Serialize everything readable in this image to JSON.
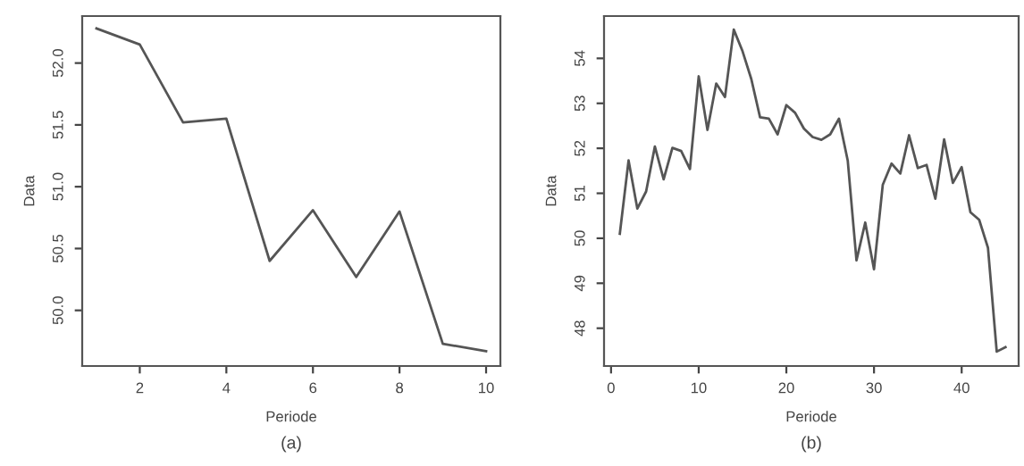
{
  "chart_data": [
    {
      "type": "line",
      "xlabel": "Periode",
      "ylabel": "Data",
      "annotations": [
        "(a)"
      ],
      "x": [
        1,
        2,
        3,
        4,
        5,
        6,
        7,
        8,
        9,
        10
      ],
      "series": [
        {
          "color": "#555555",
          "values": [
            52.28,
            52.15,
            51.52,
            51.55,
            50.4,
            50.81,
            50.27,
            50.8,
            49.73,
            49.67
          ]
        }
      ],
      "xlim": [
        0.67,
        10.33
      ],
      "ylim": [
        49.55,
        52.38
      ],
      "xticks": [
        2,
        4,
        6,
        8,
        10
      ],
      "yticks": [
        {
          "value": 50,
          "label": "50.0"
        },
        {
          "value": 50.5,
          "label": "50.5"
        },
        {
          "value": 51,
          "label": "51.0"
        },
        {
          "value": 51.5,
          "label": "51.5"
        },
        {
          "value": 52,
          "label": "52.0"
        }
      ],
      "grid": false,
      "legend": false,
      "marker": "none",
      "line_style": "solid"
    },
    {
      "type": "line",
      "xlabel": "Periode",
      "ylabel": "Data",
      "annotations": [
        "(b)"
      ],
      "x": [
        1,
        2,
        3,
        4,
        5,
        6,
        7,
        8,
        9,
        10,
        11,
        12,
        13,
        14,
        15,
        16,
        17,
        18,
        19,
        20,
        21,
        22,
        23,
        24,
        25,
        26,
        27,
        28,
        29,
        30,
        31,
        32,
        33,
        34,
        35,
        36,
        37,
        38,
        39,
        40,
        41,
        42,
        43,
        44,
        45
      ],
      "series": [
        {
          "color": "#555555",
          "values": [
            50.1,
            51.73,
            50.66,
            51.04,
            52.04,
            51.31,
            52.01,
            51.94,
            51.54,
            53.6,
            52.41,
            53.44,
            53.14,
            54.64,
            54.16,
            53.54,
            52.69,
            52.66,
            52.31,
            52.96,
            52.79,
            52.44,
            52.25,
            52.19,
            52.31,
            52.66,
            51.73,
            49.51,
            50.35,
            49.31,
            51.19,
            51.66,
            51.44,
            52.29,
            51.56,
            51.63,
            50.88,
            52.2,
            51.23,
            51.58,
            50.58,
            50.41,
            49.79,
            47.48,
            47.58
          ]
        }
      ],
      "xlim": [
        -0.8,
        46.5
      ],
      "ylim": [
        47.16,
        54.94
      ],
      "xticks": [
        0,
        10,
        20,
        30,
        40
      ],
      "yticks": [
        48,
        49,
        50,
        51,
        52,
        53,
        54
      ],
      "grid": false,
      "legend": false,
      "marker": "none",
      "line_style": "solid"
    }
  ]
}
